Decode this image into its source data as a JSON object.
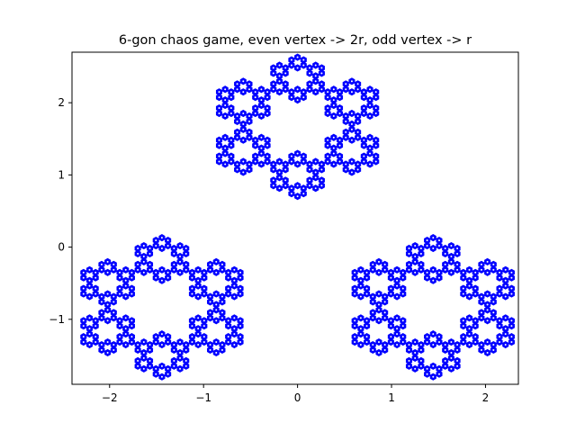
{
  "chart_data": {
    "type": "scatter",
    "title": "6-gon chaos game, even vertex -> 2r, odd vertex -> r",
    "xlabel": "",
    "ylabel": "",
    "xlim": [
      -2.4,
      2.35
    ],
    "ylim": [
      -1.9,
      2.7
    ],
    "xticks": [
      -2,
      -1,
      0,
      1,
      2
    ],
    "yticks": [
      -1,
      0,
      1,
      2
    ],
    "grid": false,
    "legend": "none",
    "point_color": "#0000ff",
    "series": [
      {
        "clusters": [
          {
            "center": [
              0.0,
              1.667
            ],
            "radius": 0.667
          },
          {
            "center": [
              -1.443,
              -0.833
            ],
            "radius": 0.667
          },
          {
            "center": [
              1.443,
              -0.833
            ],
            "radius": 0.667
          }
        ],
        "marker": "point"
      }
    ]
  }
}
